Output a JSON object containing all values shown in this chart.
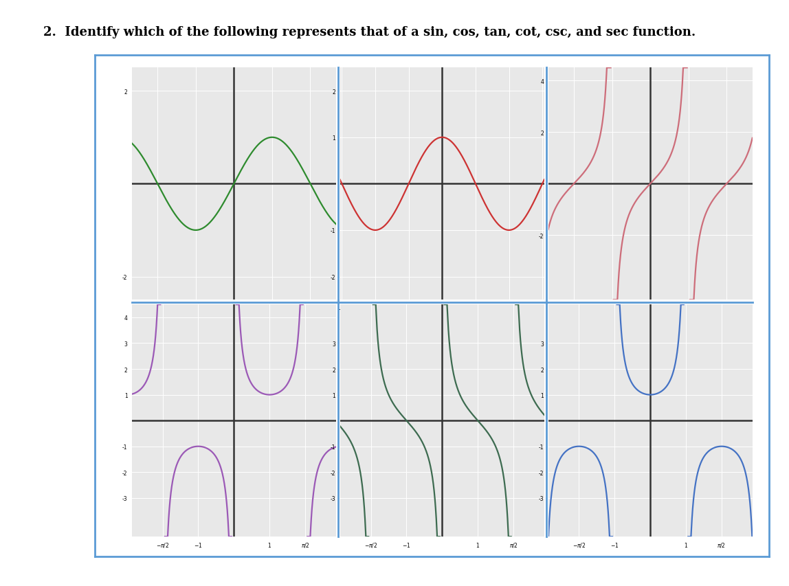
{
  "title": "2.  Identify which of the following represents that of a sin, cos, tan, cot, csc, and sec function.",
  "title_fontsize": 13,
  "outer_box_color": "#5b9bd5",
  "divider_color": "#5b9bd5",
  "bg_color": "#e8e8e8",
  "grid_color": "#ffffff",
  "plots": [
    {
      "func": "sin",
      "color": "#2e8b2e",
      "xlim": [
        -4.2,
        4.2
      ],
      "ylim": [
        -2.5,
        2.5
      ],
      "yticks": [
        -2,
        2
      ],
      "row": 0,
      "col": 0
    },
    {
      "func": "cos",
      "color": "#cd3333",
      "xlim": [
        -4.8,
        4.8
      ],
      "ylim": [
        -2.5,
        2.5
      ],
      "yticks": [
        -2,
        -1,
        1,
        2
      ],
      "row": 0,
      "col": 1
    },
    {
      "func": "tan",
      "color": "#cd6d7a",
      "xlim": [
        -4.2,
        4.2
      ],
      "ylim": [
        -4.5,
        4.5
      ],
      "yticks": [
        -2,
        2,
        4
      ],
      "row": 0,
      "col": 2
    },
    {
      "func": "csc",
      "color": "#9b59b6",
      "xlim": [
        -4.5,
        4.5
      ],
      "ylim": [
        -4.5,
        4.5
      ],
      "yticks": [
        -3,
        -2,
        -1,
        1,
        2,
        3,
        4
      ],
      "row": 1,
      "col": 0
    },
    {
      "func": "cot",
      "color": "#3d6b50",
      "xlim": [
        -4.5,
        4.5
      ],
      "ylim": [
        -4.5,
        4.5
      ],
      "yticks": [
        -3,
        -2,
        -1,
        1,
        2,
        3
      ],
      "row": 1,
      "col": 1
    },
    {
      "func": "sec",
      "color": "#4472c4",
      "xlim": [
        -4.5,
        4.5
      ],
      "ylim": [
        -4.5,
        4.5
      ],
      "yticks": [
        -3,
        -2,
        -1,
        1,
        2,
        3
      ],
      "row": 1,
      "col": 2
    }
  ]
}
